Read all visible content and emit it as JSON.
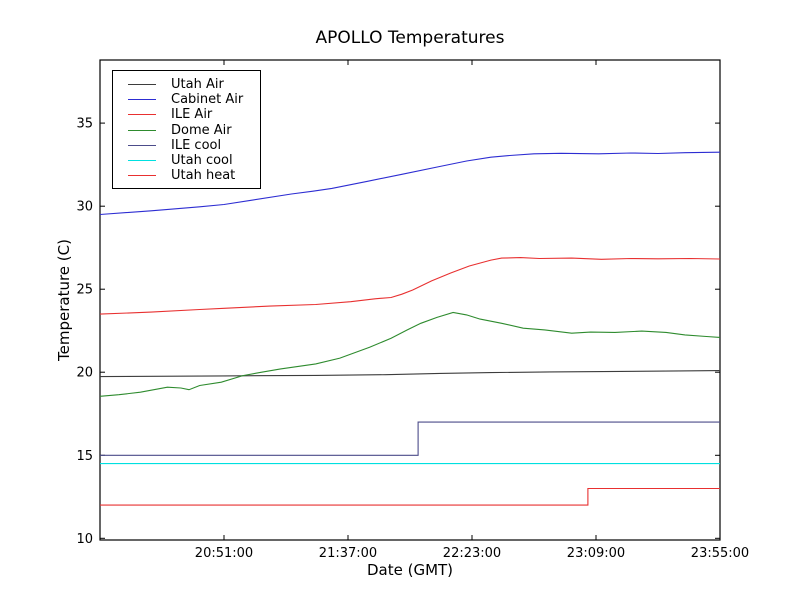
{
  "chart_data": {
    "type": "line",
    "title": "APOLLO Temperatures",
    "xlabel": "Date (GMT)",
    "ylabel": "Temperature (C)",
    "x_unit_note": "x values are minutes since 00:00 GMT",
    "xlim": [
      1205,
      1435
    ],
    "ylim": [
      9.9,
      38.8
    ],
    "grid": false,
    "legend_position": "upper left",
    "x_ticks": [
      {
        "t": 1251,
        "label": "20:51:00"
      },
      {
        "t": 1297,
        "label": "21:37:00"
      },
      {
        "t": 1343,
        "label": "22:23:00"
      },
      {
        "t": 1389,
        "label": "23:09:00"
      },
      {
        "t": 1435,
        "label": "23:55:00"
      }
    ],
    "y_ticks": [
      10,
      15,
      20,
      25,
      30,
      35
    ],
    "series": [
      {
        "name": "Utah Air",
        "color": "#3d3d3d",
        "points": [
          [
            1205,
            19.74
          ],
          [
            1251,
            19.78
          ],
          [
            1285,
            19.81
          ],
          [
            1311,
            19.85
          ],
          [
            1331,
            19.93
          ],
          [
            1350,
            19.98
          ],
          [
            1372,
            20.02
          ],
          [
            1398,
            20.05
          ],
          [
            1420,
            20.08
          ],
          [
            1435,
            20.1
          ]
        ]
      },
      {
        "name": "Cabinet Air",
        "color": "#2d2dd2",
        "points": [
          [
            1205,
            29.5
          ],
          [
            1224,
            29.72
          ],
          [
            1242,
            29.96
          ],
          [
            1251,
            30.1
          ],
          [
            1261,
            30.35
          ],
          [
            1276,
            30.73
          ],
          [
            1284,
            30.9
          ],
          [
            1291,
            31.07
          ],
          [
            1304,
            31.49
          ],
          [
            1317,
            31.92
          ],
          [
            1331,
            32.39
          ],
          [
            1341,
            32.72
          ],
          [
            1350,
            32.95
          ],
          [
            1357,
            33.05
          ],
          [
            1366,
            33.15
          ],
          [
            1376,
            33.18
          ],
          [
            1390,
            33.15
          ],
          [
            1402,
            33.2
          ],
          [
            1412,
            33.17
          ],
          [
            1422,
            33.22
          ],
          [
            1435,
            33.25
          ]
        ]
      },
      {
        "name": "ILE Air",
        "color": "#e83030",
        "points": [
          [
            1205,
            23.5
          ],
          [
            1224,
            23.62
          ],
          [
            1242,
            23.78
          ],
          [
            1251,
            23.85
          ],
          [
            1268,
            23.98
          ],
          [
            1285,
            24.08
          ],
          [
            1298,
            24.25
          ],
          [
            1307,
            24.42
          ],
          [
            1313,
            24.5
          ],
          [
            1317,
            24.7
          ],
          [
            1321,
            24.95
          ],
          [
            1328,
            25.5
          ],
          [
            1335,
            25.97
          ],
          [
            1342,
            26.4
          ],
          [
            1350,
            26.75
          ],
          [
            1354,
            26.87
          ],
          [
            1361,
            26.9
          ],
          [
            1368,
            26.85
          ],
          [
            1380,
            26.87
          ],
          [
            1391,
            26.8
          ],
          [
            1402,
            26.85
          ],
          [
            1412,
            26.83
          ],
          [
            1424,
            26.85
          ],
          [
            1435,
            26.82
          ]
        ]
      },
      {
        "name": "Dome Air",
        "color": "#2e8b2e",
        "points": [
          [
            1205,
            18.55
          ],
          [
            1212,
            18.65
          ],
          [
            1220,
            18.8
          ],
          [
            1230,
            19.1
          ],
          [
            1235,
            19.05
          ],
          [
            1238,
            18.95
          ],
          [
            1242,
            19.2
          ],
          [
            1250,
            19.4
          ],
          [
            1258,
            19.8
          ],
          [
            1265,
            20.0
          ],
          [
            1272,
            20.2
          ],
          [
            1285,
            20.5
          ],
          [
            1294,
            20.85
          ],
          [
            1305,
            21.5
          ],
          [
            1313,
            22.05
          ],
          [
            1319,
            22.55
          ],
          [
            1324,
            22.95
          ],
          [
            1330,
            23.3
          ],
          [
            1336,
            23.6
          ],
          [
            1341,
            23.45
          ],
          [
            1346,
            23.2
          ],
          [
            1354,
            22.95
          ],
          [
            1362,
            22.65
          ],
          [
            1370,
            22.55
          ],
          [
            1380,
            22.35
          ],
          [
            1387,
            22.42
          ],
          [
            1396,
            22.4
          ],
          [
            1406,
            22.48
          ],
          [
            1415,
            22.4
          ],
          [
            1422,
            22.25
          ],
          [
            1430,
            22.15
          ],
          [
            1435,
            22.1
          ]
        ]
      },
      {
        "name": "ILE cool",
        "color": "#4c4c8a",
        "points": [
          [
            1205,
            15.0
          ],
          [
            1323,
            15.0
          ],
          [
            1323,
            17.0
          ],
          [
            1435,
            17.0
          ]
        ]
      },
      {
        "name": "Utah cool",
        "color": "#00e0e0",
        "points": [
          [
            1205,
            14.5
          ],
          [
            1435,
            14.5
          ]
        ]
      },
      {
        "name": "Utah heat",
        "color": "#e83030",
        "points": [
          [
            1205,
            12.0
          ],
          [
            1386,
            12.0
          ],
          [
            1386,
            13.0
          ],
          [
            1435,
            13.0
          ]
        ]
      }
    ]
  }
}
